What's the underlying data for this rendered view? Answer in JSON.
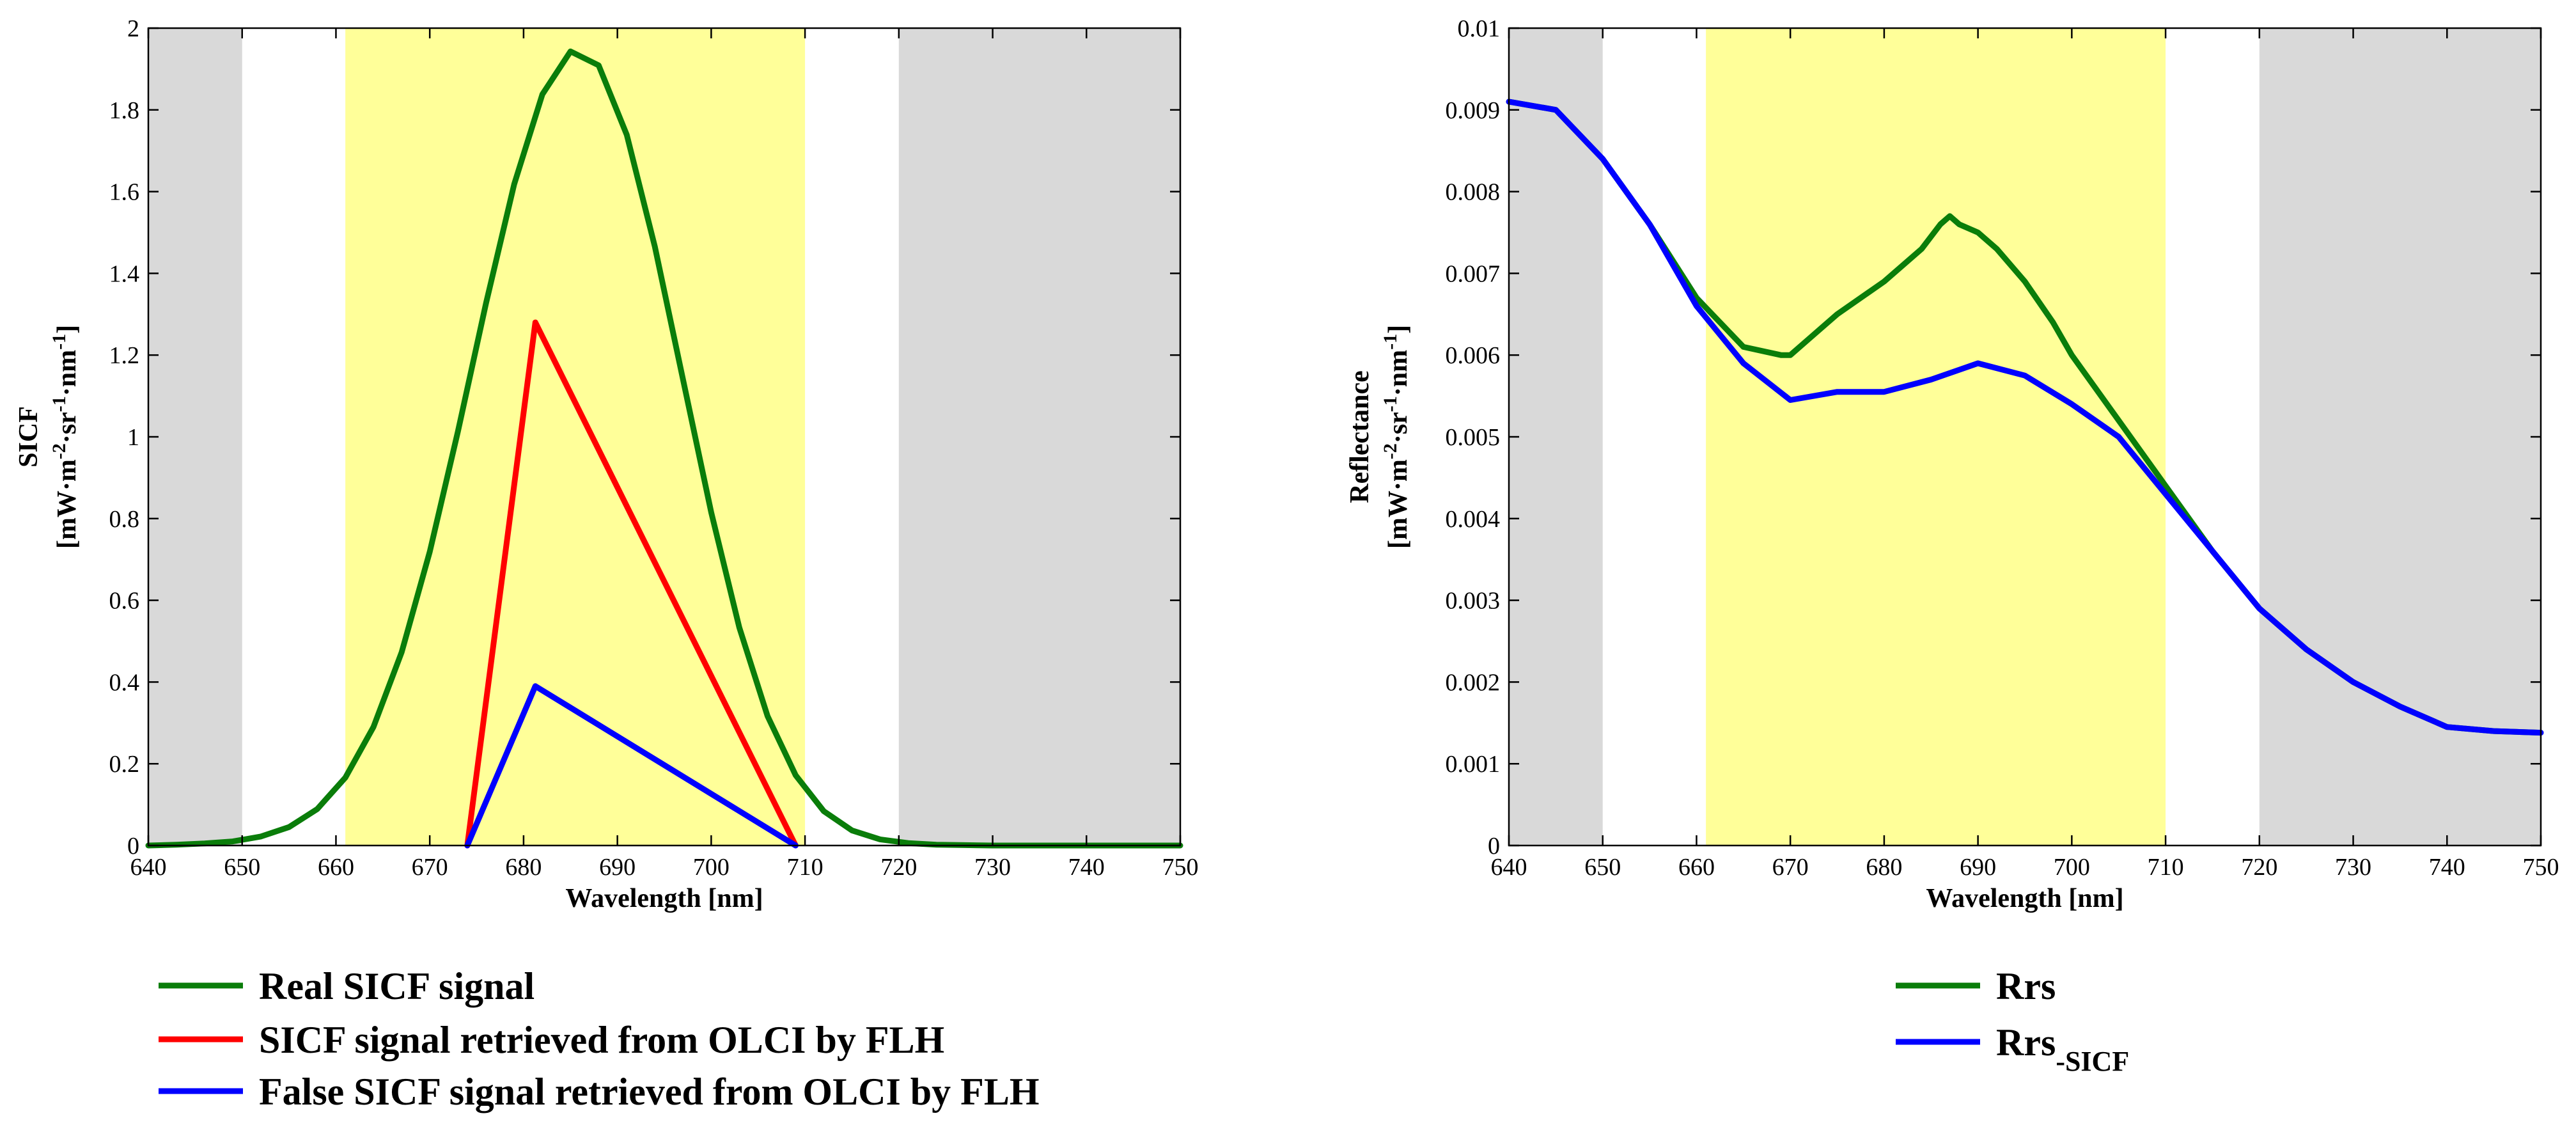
{
  "chart_data": [
    {
      "type": "line",
      "xlabel": "Wavelength [nm]",
      "ylabel": "SICF",
      "ylabel_unit": "[mW·m-2·sr-1·nm-1]",
      "ylabel_unit_parts": [
        "[mW·m",
        "-2",
        "·sr",
        "-1",
        "·nm",
        "-1",
        "]"
      ],
      "xlim": [
        640,
        750
      ],
      "ylim": [
        0,
        2
      ],
      "xticks": [
        "640",
        "650",
        "660",
        "670",
        "680",
        "690",
        "700",
        "710",
        "720",
        "730",
        "740",
        "750"
      ],
      "yticks": [
        "0",
        "0.2",
        "0.4",
        "0.6",
        "0.8",
        "1",
        "1.2",
        "1.4",
        "1.6",
        "1.8",
        "2"
      ],
      "shaded_regions": [
        {
          "from": 640,
          "to": 650,
          "color": "#d9d9d9"
        },
        {
          "from": 661,
          "to": 710,
          "color": "#ffff99"
        },
        {
          "from": 720,
          "to": 750,
          "color": "#d9d9d9"
        }
      ],
      "series": [
        {
          "name": "Real SICF signal",
          "color": "#0a7d0a",
          "x": [
            640,
            643,
            646,
            649,
            652,
            655,
            658,
            661,
            664,
            667,
            670,
            673,
            676,
            679,
            682,
            685,
            688,
            691,
            694,
            697,
            700,
            703,
            706,
            709,
            712,
            715,
            718,
            721,
            724,
            727,
            730,
            735,
            740,
            745,
            750
          ],
          "y": [
            0.0,
            0.002,
            0.005,
            0.01,
            0.022,
            0.045,
            0.089,
            0.166,
            0.29,
            0.473,
            0.719,
            1.013,
            1.327,
            1.618,
            1.838,
            1.943,
            1.909,
            1.739,
            1.465,
            1.14,
            0.815,
            0.533,
            0.317,
            0.172,
            0.084,
            0.037,
            0.015,
            0.006,
            0.002,
            0.001,
            0.0,
            0.0,
            0.0,
            0.0,
            0.0
          ]
        },
        {
          "name": "SICF signal retrieved from OLCI by FLH",
          "color": "#ff0000",
          "x": [
            674,
            681.25,
            709
          ],
          "y": [
            0,
            1.28,
            0
          ]
        },
        {
          "name": "False SICF signal retrieved from OLCI by FLH",
          "color": "#0000ff",
          "x": [
            674,
            681.25,
            709
          ],
          "y": [
            0,
            0.39,
            0
          ]
        }
      ]
    },
    {
      "type": "line",
      "xlabel": "Wavelength [nm]",
      "ylabel": "Reflectance",
      "ylabel_unit": "[mW·m-2·sr-1·nm-1]",
      "ylabel_unit_parts": [
        "[mW·m",
        "-2",
        "·sr",
        "-1",
        "·nm",
        "-1",
        "]"
      ],
      "xlim": [
        640,
        750
      ],
      "ylim": [
        0,
        0.01
      ],
      "xticks": [
        "640",
        "650",
        "660",
        "670",
        "680",
        "690",
        "700",
        "710",
        "720",
        "730",
        "740",
        "750"
      ],
      "yticks": [
        "0",
        "0.001",
        "0.002",
        "0.003",
        "0.004",
        "0.005",
        "0.006",
        "0.007",
        "0.008",
        "0.009",
        "0.01"
      ],
      "shaded_regions": [
        {
          "from": 640,
          "to": 650,
          "color": "#d9d9d9"
        },
        {
          "from": 661,
          "to": 710,
          "color": "#ffff99"
        },
        {
          "from": 720,
          "to": 750,
          "color": "#d9d9d9"
        }
      ],
      "series": [
        {
          "name": "Rrs",
          "color": "#0a7d0a",
          "x": [
            640,
            645,
            650,
            655,
            660,
            665,
            669,
            670,
            672,
            675,
            680,
            684,
            686,
            687,
            688,
            690,
            692,
            695,
            698,
            700,
            705,
            710,
            715,
            720,
            725,
            730,
            735,
            740,
            745,
            750
          ],
          "y": [
            0.0091,
            0.009,
            0.0084,
            0.0076,
            0.0067,
            0.0061,
            0.006,
            0.006,
            0.0062,
            0.0065,
            0.0069,
            0.0073,
            0.0076,
            0.0077,
            0.0076,
            0.0075,
            0.0073,
            0.0069,
            0.0064,
            0.006,
            0.0052,
            0.0044,
            0.0036,
            0.0029,
            0.0024,
            0.002,
            0.0017,
            0.00145,
            0.0014,
            0.00138
          ]
        },
        {
          "name": "Rrs",
          "name_sub": "-SICF",
          "color": "#0000ff",
          "x": [
            640,
            645,
            650,
            655,
            660,
            665,
            670,
            675,
            680,
            685,
            690,
            695,
            700,
            705,
            710,
            715,
            720,
            725,
            730,
            735,
            740,
            745,
            750
          ],
          "y": [
            0.0091,
            0.009,
            0.0084,
            0.0076,
            0.0066,
            0.0059,
            0.00545,
            0.00555,
            0.00555,
            0.0057,
            0.0059,
            0.00575,
            0.0054,
            0.005,
            0.0043,
            0.0036,
            0.0029,
            0.0024,
            0.002,
            0.0017,
            0.00145,
            0.0014,
            0.00138
          ]
        }
      ]
    }
  ]
}
